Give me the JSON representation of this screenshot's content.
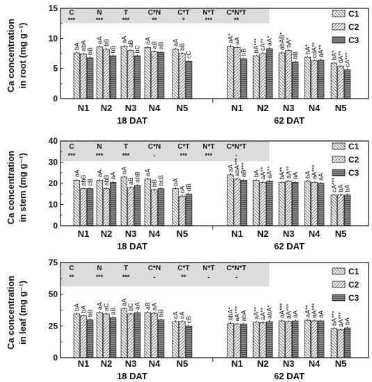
{
  "colors": {
    "bar_edge": "#222222",
    "stats_box": "#dcdcdc",
    "axis": "#111111"
  },
  "chart_data": [
    {
      "type": "bar",
      "ylabel_lines": [
        "Ca concentration",
        "in root (mg g⁻¹)"
      ],
      "ylim": [
        0,
        15
      ],
      "yticks": [
        0,
        5,
        10,
        15
      ],
      "categories": [
        "N1",
        "N2",
        "N3",
        "N4",
        "N5",
        "N1",
        "N2",
        "N3",
        "N4",
        "N5"
      ],
      "groups": [
        {
          "label": "18 DAT"
        },
        {
          "label": "62 DAT"
        }
      ],
      "legend_position": "top-right",
      "series": [
        {
          "name": "C1",
          "values": [
            7.6,
            8.6,
            8.7,
            8.5,
            8.2,
            8.7,
            7.1,
            7.6,
            6.9,
            5.9
          ]
        },
        {
          "name": "C2",
          "values": [
            7.4,
            8.2,
            8.0,
            7.8,
            7.5,
            8.5,
            7.5,
            8.0,
            6.3,
            5.4
          ]
        },
        {
          "name": "C3",
          "values": [
            6.8,
            7.1,
            7.1,
            7.7,
            6.2,
            6.6,
            8.3,
            6.1,
            6.4,
            4.8
          ]
        }
      ],
      "annotations": [
        [
          "bA",
          "abA",
          "bB"
        ],
        [
          "aA",
          "bB",
          "bB"
        ],
        [
          "aA",
          "aB",
          "bC"
        ],
        [
          "aA",
          "aB",
          "aB"
        ],
        [
          "aA",
          "bB",
          "cC"
        ],
        [
          "aA*",
          "aA",
          "bB"
        ],
        [
          "bA***",
          "cA**",
          "aA*"
        ],
        [
          "abAB*",
          "aA*",
          "bB"
        ],
        [
          "bA*",
          "cdA**",
          "aA**"
        ],
        [
          "bA*",
          "dA**",
          "cA***"
        ]
      ],
      "stats": {
        "headers": [
          "C",
          "N",
          "T",
          "C*N",
          "C*T",
          "N*T",
          "C*N*T"
        ],
        "values": [
          "***",
          "***",
          "***",
          "**",
          "*",
          "***",
          "**"
        ]
      }
    },
    {
      "type": "bar",
      "ylabel_lines": [
        "Ca concentration",
        "in stem (mg g⁻¹)"
      ],
      "ylim": [
        0,
        40
      ],
      "yticks": [
        0,
        10,
        20,
        30,
        40
      ],
      "categories": [
        "N1",
        "N2",
        "N3",
        "N4",
        "N5",
        "N1",
        "N2",
        "N3",
        "N4",
        "N5"
      ],
      "groups": [
        {
          "label": "18 DAT"
        },
        {
          "label": "62 DAT"
        }
      ],
      "legend_position": "top-right",
      "series": [
        {
          "name": "C1",
          "values": [
            21.5,
            21.5,
            23.0,
            22.0,
            17.5,
            24.0,
            21.5,
            20.5,
            21.0,
            14.5
          ]
        },
        {
          "name": "C2",
          "values": [
            17.5,
            17.5,
            18.0,
            17.0,
            14.0,
            22.0,
            20.5,
            21.0,
            20.5,
            14.5
          ]
        },
        {
          "name": "C3",
          "values": [
            17.5,
            20.5,
            19.0,
            17.5,
            15.0,
            21.5,
            21.0,
            20.5,
            20.0,
            14.5
          ]
        }
      ],
      "annotations": [
        [
          "aA",
          "abB",
          "cB"
        ],
        [
          "aA",
          "abB",
          "aA"
        ],
        [
          "aA",
          "aB",
          "abB"
        ],
        [
          "aA",
          "bB",
          "bcB"
        ],
        [
          "bA",
          "cA",
          "dB"
        ],
        [
          "aA",
          "abA***",
          "aB***"
        ],
        [
          "bA",
          "aA**",
          "aA**"
        ],
        [
          "bA**",
          "aA**",
          "aA"
        ],
        [
          "bA",
          "aA***",
          "aA"
        ],
        [
          "cA***",
          "bA",
          "bA"
        ]
      ],
      "stats": {
        "headers": [
          "C",
          "N",
          "T",
          "C*N",
          "C*T",
          "N*T",
          "C*N*T"
        ],
        "values": [
          "***",
          "***",
          "***",
          "-",
          "***",
          "***",
          "-"
        ]
      }
    },
    {
      "type": "bar",
      "ylabel_lines": [
        "Ca concentration",
        "in leaf (mg g⁻¹)"
      ],
      "ylim": [
        0,
        75
      ],
      "yticks": [
        0,
        25,
        50,
        75
      ],
      "categories": [
        "N1",
        "N2",
        "N3",
        "N4",
        "N5",
        "N1",
        "N2",
        "N3",
        "N4",
        "N5"
      ],
      "groups": [
        {
          "label": "18 DAT"
        },
        {
          "label": "62 DAT"
        }
      ],
      "legend_position": "top-right",
      "series": [
        {
          "name": "C1",
          "values": [
            34.5,
            35.5,
            38.5,
            35.5,
            28.5,
            27.0,
            28.0,
            29.0,
            29.5,
            23.0
          ]
        },
        {
          "name": "C2",
          "values": [
            33.0,
            34.5,
            34.5,
            35.0,
            28.5,
            26.5,
            27.5,
            28.5,
            29.0,
            22.0
          ]
        },
        {
          "name": "C3",
          "values": [
            30.0,
            31.5,
            35.5,
            30.0,
            25.0,
            26.5,
            28.5,
            29.0,
            29.0,
            23.5
          ]
        }
      ],
      "annotations": [
        [
          "bA",
          "bA",
          "bB"
        ],
        [
          "aA",
          "aC",
          "aB"
        ],
        [
          "aA",
          "bC",
          "aA"
        ],
        [
          "aB",
          "aA",
          "bB"
        ],
        [
          "cA",
          "cA",
          "cB"
        ],
        [
          "abA*",
          "aA***",
          "abA"
        ],
        [
          "aA**",
          "aA**",
          "abA*"
        ],
        [
          "aA***",
          "aA***",
          "aA"
        ],
        [
          "aA**",
          "aA***",
          "aA"
        ],
        [
          "bA***",
          "aA***",
          "bA"
        ]
      ],
      "stats": {
        "headers": [
          "C",
          "N",
          "T",
          "C*N",
          "C*T",
          "N*T",
          "C*N*T"
        ],
        "values": [
          "**",
          "***",
          "***",
          "-",
          "**",
          "-",
          "-"
        ]
      }
    }
  ]
}
